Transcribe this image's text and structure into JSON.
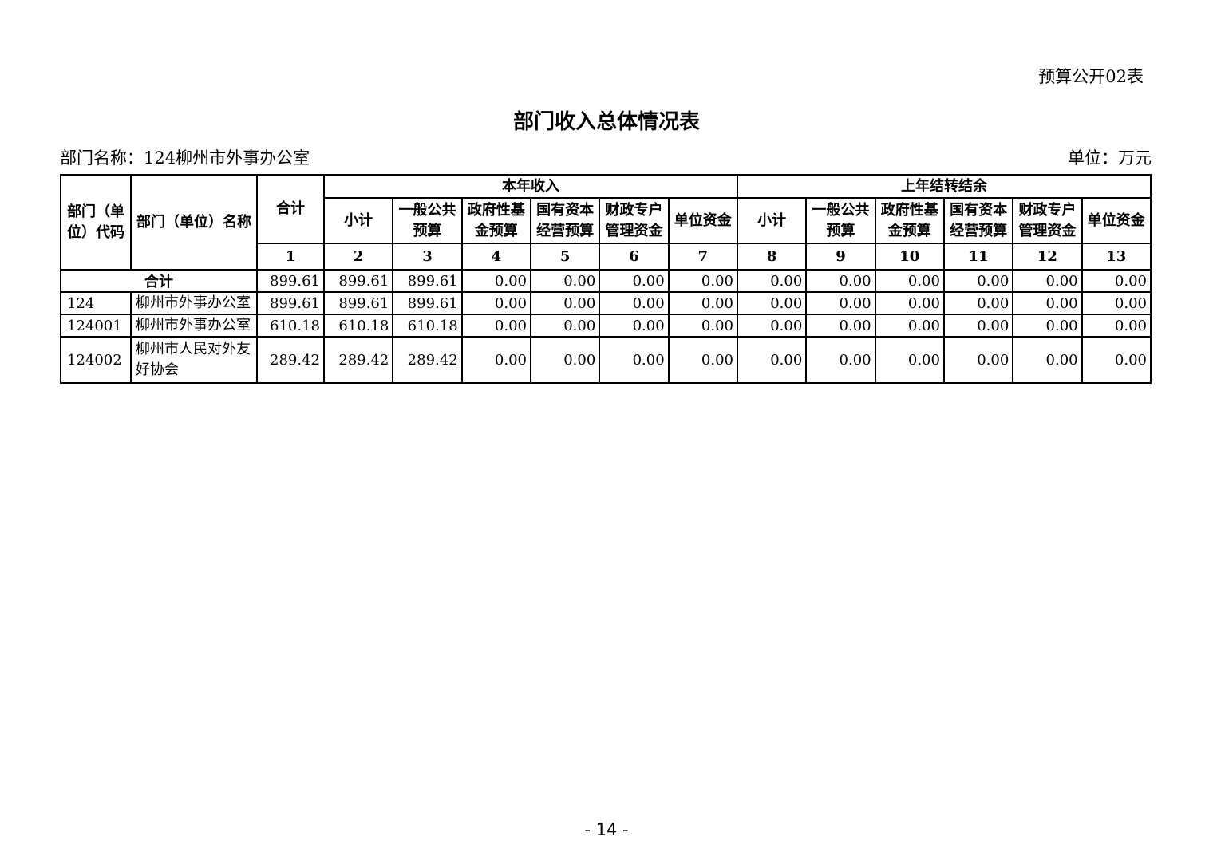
{
  "page": {
    "doc_label": "预算公开02表",
    "title": "部门收入总体情况表",
    "dept_label": "部门名称：124柳州市外事办公室",
    "unit_label": "单位：万元",
    "page_number": "- 14 -"
  },
  "table": {
    "header": {
      "code": "部门（单\n位）代码",
      "name": "部门（单位）名称",
      "total": "合计",
      "groups": [
        {
          "label": "本年收入"
        },
        {
          "label": "上年结转结余"
        }
      ],
      "sub_columns": [
        "小计",
        "一般公共\n预算",
        "政府性基\n金预算",
        "国有资本\n经营预算",
        "财政专户\n管理资金",
        "单位资金"
      ],
      "column_numbers": [
        "1",
        "2",
        "3",
        "4",
        "5",
        "6",
        "7",
        "8",
        "9",
        "10",
        "11",
        "12",
        "13"
      ]
    },
    "rows": [
      {
        "code": "",
        "name": "合计",
        "merged": true,
        "bold": true,
        "values": [
          "899.61",
          "899.61",
          "899.61",
          "0.00",
          "0.00",
          "0.00",
          "0.00",
          "0.00",
          "0.00",
          "0.00",
          "0.00",
          "0.00",
          "0.00"
        ]
      },
      {
        "code": "124",
        "name": "柳州市外事办公室",
        "merged": false,
        "bold": false,
        "values": [
          "899.61",
          "899.61",
          "899.61",
          "0.00",
          "0.00",
          "0.00",
          "0.00",
          "0.00",
          "0.00",
          "0.00",
          "0.00",
          "0.00",
          "0.00"
        ]
      },
      {
        "code": "124001",
        "name": "柳州市外事办公室",
        "merged": false,
        "bold": false,
        "values": [
          "610.18",
          "610.18",
          "610.18",
          "0.00",
          "0.00",
          "0.00",
          "0.00",
          "0.00",
          "0.00",
          "0.00",
          "0.00",
          "0.00",
          "0.00"
        ]
      },
      {
        "code": "124002",
        "name": "柳州市人民对外友好协会",
        "merged": false,
        "bold": false,
        "values": [
          "289.42",
          "289.42",
          "289.42",
          "0.00",
          "0.00",
          "0.00",
          "0.00",
          "0.00",
          "0.00",
          "0.00",
          "0.00",
          "0.00",
          "0.00"
        ]
      }
    ]
  }
}
